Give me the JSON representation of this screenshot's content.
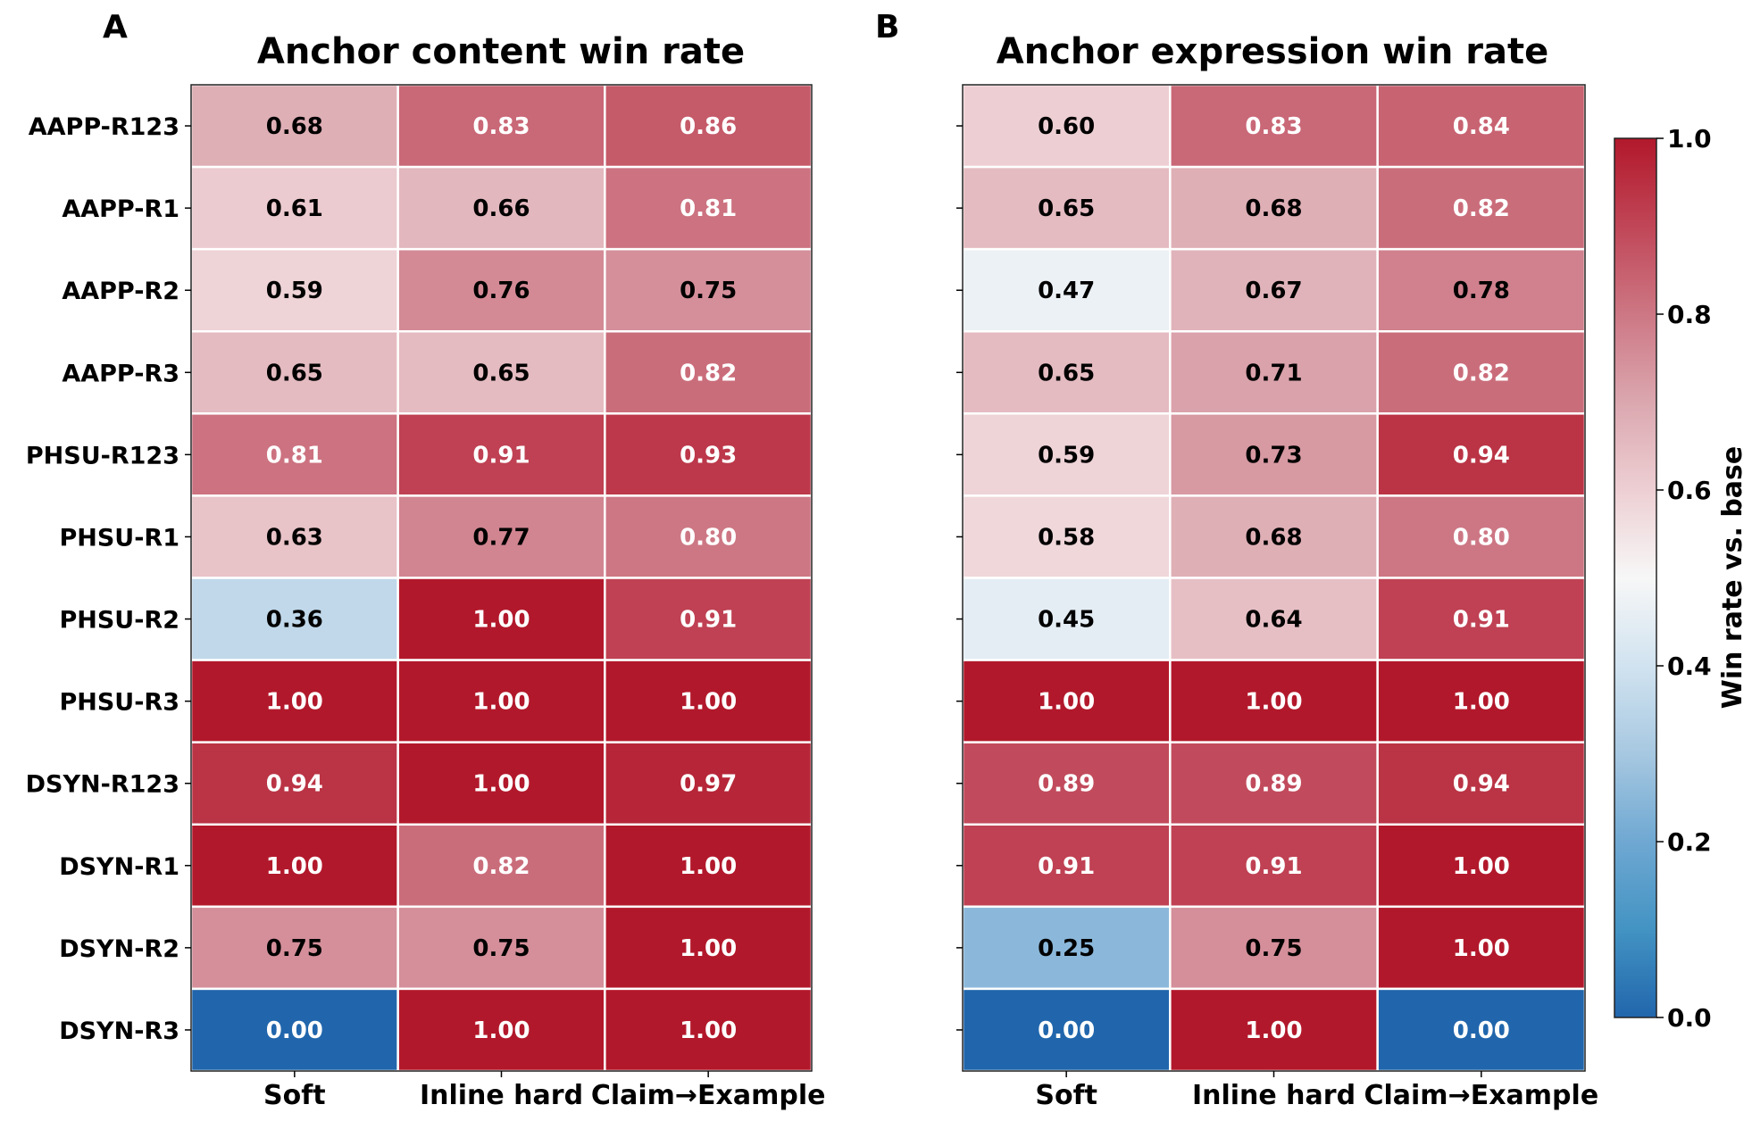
{
  "chart_data": [
    {
      "type": "heatmap",
      "panel": "A",
      "title": "Anchor content win rate",
      "columns": [
        "Soft",
        "Inline hard",
        "Claim→Example"
      ],
      "rows": [
        "AAPP-R123",
        "AAPP-R1",
        "AAPP-R2",
        "AAPP-R3",
        "PHSU-R123",
        "PHSU-R1",
        "PHSU-R2",
        "PHSU-R3",
        "DSYN-R123",
        "DSYN-R1",
        "DSYN-R2",
        "DSYN-R3"
      ],
      "values": [
        [
          0.68,
          0.83,
          0.86
        ],
        [
          0.61,
          0.66,
          0.81
        ],
        [
          0.59,
          0.76,
          0.75
        ],
        [
          0.65,
          0.65,
          0.82
        ],
        [
          0.81,
          0.91,
          0.93
        ],
        [
          0.63,
          0.77,
          0.8
        ],
        [
          0.36,
          1.0,
          0.91
        ],
        [
          1.0,
          1.0,
          1.0
        ],
        [
          0.94,
          1.0,
          0.97
        ],
        [
          1.0,
          0.82,
          1.0
        ],
        [
          0.75,
          0.75,
          1.0
        ],
        [
          0.0,
          1.0,
          1.0
        ]
      ],
      "labels": [
        [
          "0.68",
          "0.83",
          "0.86"
        ],
        [
          "0.61",
          "0.66",
          "0.81"
        ],
        [
          "0.59",
          "0.76",
          "0.75"
        ],
        [
          "0.65",
          "0.65",
          "0.82"
        ],
        [
          "0.81",
          "0.91",
          "0.93"
        ],
        [
          "0.63",
          "0.77",
          "0.80"
        ],
        [
          "0.36",
          "1.00",
          "0.91"
        ],
        [
          "1.00",
          "1.00",
          "1.00"
        ],
        [
          "0.94",
          "1.00",
          "0.97"
        ],
        [
          "1.00",
          "0.82",
          "1.00"
        ],
        [
          "0.75",
          "0.75",
          "1.00"
        ],
        [
          "0.00",
          "1.00",
          "1.00"
        ]
      ],
      "show_row_labels": true
    },
    {
      "type": "heatmap",
      "panel": "B",
      "title": "Anchor expression win rate",
      "columns": [
        "Soft",
        "Inline hard",
        "Claim→Example"
      ],
      "rows": [
        "AAPP-R123",
        "AAPP-R1",
        "AAPP-R2",
        "AAPP-R3",
        "PHSU-R123",
        "PHSU-R1",
        "PHSU-R2",
        "PHSU-R3",
        "DSYN-R123",
        "DSYN-R1",
        "DSYN-R2",
        "DSYN-R3"
      ],
      "values": [
        [
          0.6,
          0.83,
          0.84
        ],
        [
          0.65,
          0.68,
          0.82
        ],
        [
          0.47,
          0.67,
          0.78
        ],
        [
          0.65,
          0.71,
          0.82
        ],
        [
          0.59,
          0.73,
          0.94
        ],
        [
          0.58,
          0.68,
          0.8
        ],
        [
          0.45,
          0.64,
          0.91
        ],
        [
          1.0,
          1.0,
          1.0
        ],
        [
          0.89,
          0.89,
          0.94
        ],
        [
          0.91,
          0.91,
          1.0
        ],
        [
          0.25,
          0.75,
          1.0
        ],
        [
          0.0,
          1.0,
          0.0
        ]
      ],
      "labels": [
        [
          "0.60",
          "0.83",
          "0.84"
        ],
        [
          "0.65",
          "0.68",
          "0.82"
        ],
        [
          "0.47",
          "0.67",
          "0.78"
        ],
        [
          "0.65",
          "0.71",
          "0.82"
        ],
        [
          "0.59",
          "0.73",
          "0.94"
        ],
        [
          "0.58",
          "0.68",
          "0.80"
        ],
        [
          "0.45",
          "0.64",
          "0.91"
        ],
        [
          "1.00",
          "1.00",
          "1.00"
        ],
        [
          "0.89",
          "0.89",
          "0.94"
        ],
        [
          "0.91",
          "0.91",
          "1.00"
        ],
        [
          "0.25",
          "0.75",
          "1.00"
        ],
        [
          "0.00",
          "1.00",
          "0.00"
        ]
      ],
      "show_row_labels": false
    }
  ],
  "colorbar": {
    "label": "Win rate vs. base",
    "range": [
      0.0,
      1.0
    ],
    "ticks": [
      0.0,
      0.2,
      0.4,
      0.6,
      0.8,
      1.0
    ],
    "tick_labels": [
      "0.0",
      "0.2",
      "0.4",
      "0.6",
      "0.8",
      "1.0"
    ],
    "colormap": "RdBu_r",
    "low_color": "#2166ac",
    "mid_color": "#f7f7f7",
    "high_color": "#b2182b"
  }
}
